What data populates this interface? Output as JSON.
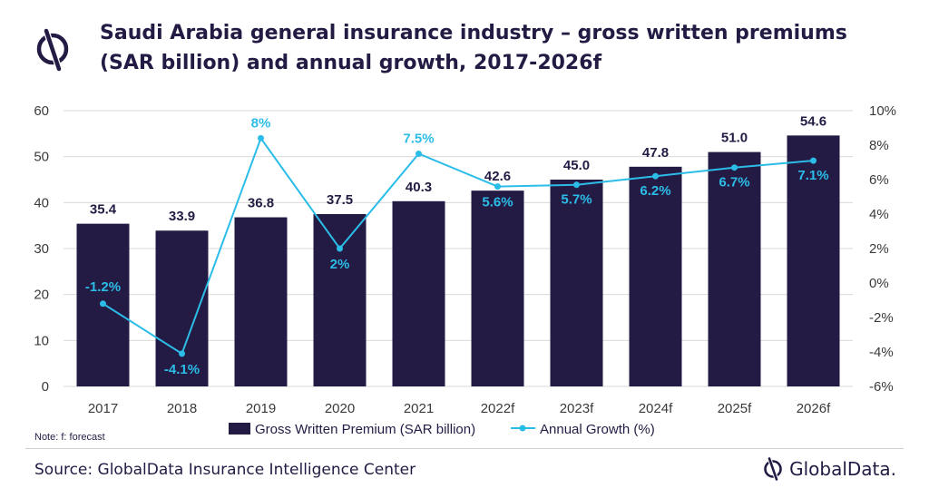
{
  "title": "Saudi Arabia general insurance industry – gross written premiums (SAR billion) and annual growth, 2017-2026f",
  "note": "Note: f: forecast",
  "source": "Source: GlobalData Insurance Intelligence Center",
  "brand": "GlobalData.",
  "colors": {
    "bar": "#241b44",
    "line": "#2bbde8",
    "text": "#241b44",
    "axis": "#3a3a3a"
  },
  "chart_data": {
    "type": "bar",
    "categories": [
      "2017",
      "2018",
      "2019",
      "2020",
      "2021",
      "2022f",
      "2023f",
      "2024f",
      "2025f",
      "2026f"
    ],
    "series": [
      {
        "name": "Gross Written Premium (SAR billion)",
        "type": "bar",
        "axis": "left",
        "values": [
          35.4,
          33.9,
          36.8,
          37.5,
          40.3,
          42.6,
          45.0,
          47.8,
          51.0,
          54.6
        ],
        "labels": [
          "35.4",
          "33.9",
          "36.8",
          "37.5",
          "40.3",
          "42.6",
          "45.0",
          "47.8",
          "51.0",
          "54.6"
        ]
      },
      {
        "name": "Annual Growth (%)",
        "type": "line",
        "axis": "right",
        "values": [
          -1.2,
          -4.1,
          8.4,
          2.0,
          7.5,
          5.6,
          5.7,
          6.2,
          6.7,
          7.1
        ],
        "labels": [
          "-1.2%",
          "-4.1%",
          "8%",
          "2%",
          "7.5%",
          "5.6%",
          "5.7%",
          "6.2%",
          "6.7%",
          "7.1%"
        ]
      }
    ],
    "yleft": {
      "min": 0,
      "max": 60,
      "ticks": [
        "0",
        "10",
        "20",
        "30",
        "40",
        "50",
        "60"
      ]
    },
    "yright": {
      "min": -6,
      "max": 10,
      "ticks": [
        "-6%",
        "-4%",
        "-2%",
        "0%",
        "2%",
        "4%",
        "6%",
        "8%",
        "10%"
      ]
    },
    "grid": true,
    "legend": "bottom"
  }
}
